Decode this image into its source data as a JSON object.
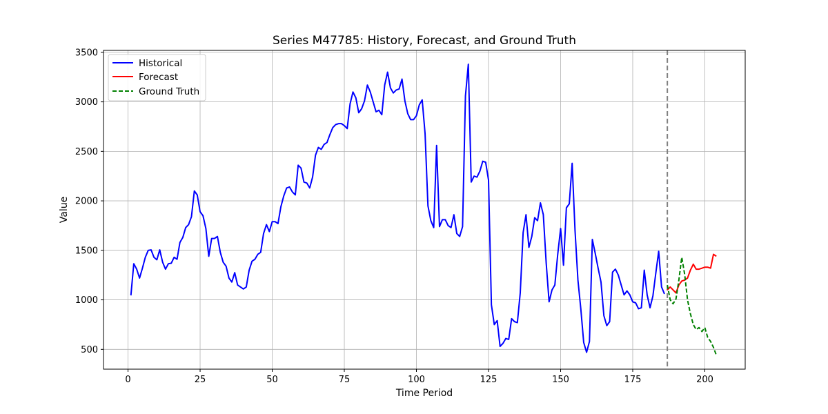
{
  "chart_data": {
    "type": "line",
    "title": "Series M47785: History, Forecast, and Ground Truth",
    "xlabel": "Time Period",
    "ylabel": "Value",
    "xlim": [
      -8.5,
      214
    ],
    "ylim": [
      300,
      3520
    ],
    "xticks": [
      0,
      25,
      50,
      75,
      100,
      125,
      150,
      175,
      200
    ],
    "yticks": [
      500,
      1000,
      1500,
      2000,
      2500,
      3000,
      3500
    ],
    "grid": true,
    "legend_position": "top-left",
    "forecast_start_marker": 187,
    "series": [
      {
        "name": "Historical",
        "color": "#0000ff",
        "style": "solid",
        "x_start": 1,
        "values": [
          1045,
          1365,
          1310,
          1220,
          1320,
          1430,
          1500,
          1505,
          1430,
          1405,
          1505,
          1380,
          1310,
          1365,
          1370,
          1430,
          1410,
          1580,
          1630,
          1730,
          1760,
          1840,
          2100,
          2060,
          1890,
          1850,
          1720,
          1440,
          1620,
          1620,
          1640,
          1480,
          1380,
          1340,
          1220,
          1180,
          1275,
          1150,
          1130,
          1110,
          1130,
          1300,
          1390,
          1410,
          1460,
          1480,
          1670,
          1760,
          1690,
          1790,
          1790,
          1770,
          1940,
          2050,
          2130,
          2140,
          2090,
          2060,
          2360,
          2330,
          2190,
          2180,
          2130,
          2240,
          2460,
          2540,
          2520,
          2570,
          2590,
          2670,
          2740,
          2770,
          2780,
          2780,
          2760,
          2730,
          2980,
          3100,
          3040,
          2890,
          2930,
          3010,
          3170,
          3100,
          3000,
          2900,
          2915,
          2870,
          3170,
          3300,
          3140,
          3090,
          3120,
          3130,
          3230,
          3010,
          2880,
          2820,
          2820,
          2860,
          2970,
          3020,
          2680,
          1950,
          1800,
          1730,
          2560,
          1740,
          1810,
          1810,
          1750,
          1730,
          1860,
          1670,
          1640,
          1740,
          3060,
          3380,
          2190,
          2250,
          2240,
          2300,
          2400,
          2390,
          2210,
          950,
          750,
          790,
          530,
          560,
          610,
          600,
          810,
          780,
          770,
          1070,
          1680,
          1860,
          1530,
          1640,
          1830,
          1800,
          1980,
          1860,
          1370,
          980,
          1100,
          1150,
          1460,
          1720,
          1350,
          1930,
          1970,
          2380,
          1700,
          1200,
          910,
          570,
          470,
          580,
          1610,
          1470,
          1320,
          1180,
          840,
          740,
          780,
          1280,
          1310,
          1250,
          1150,
          1050,
          1090,
          1050,
          980,
          970,
          910,
          920,
          1300,
          1050,
          920,
          1040,
          1270,
          1490,
          1130,
          1060
        ]
      },
      {
        "name": "Forecast",
        "color": "#ff0000",
        "style": "solid",
        "x_start": 187,
        "values": [
          1100,
          1130,
          1100,
          1070,
          1150,
          1190,
          1200,
          1220,
          1300,
          1360,
          1310,
          1310,
          1320,
          1330,
          1330,
          1320,
          1460,
          1440
        ]
      },
      {
        "name": "Ground Truth",
        "color": "#008000",
        "style": "dashed",
        "x_start": 187,
        "values": [
          1150,
          1000,
          960,
          1010,
          1200,
          1430,
          1260,
          1000,
          860,
          750,
          700,
          720,
          680,
          720,
          620,
          580,
          520,
          440
        ]
      }
    ]
  }
}
